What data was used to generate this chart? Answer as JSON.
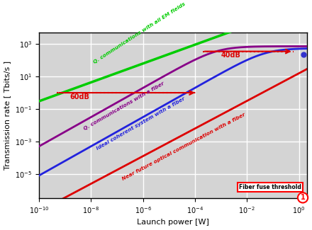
{
  "xlabel": "Launch power [W]",
  "ylabel": "Transmission rate [ Tbits/s ]",
  "bg_color": "#d4d4d4",
  "grid_color": "#ffffff",
  "green_color": "#00cc00",
  "purple_color": "#880088",
  "blue_color": "#2222dd",
  "red_color": "#dd0000",
  "red_annot": "#dd0000",
  "line_green_label": "Q. communications with all EM fields",
  "line_purple_label": "Q. communications with a fiber",
  "line_blue_label": "Ideal coherent system with a fiber",
  "line_red_label": "Near future optical communication with a fiber",
  "annot_60dB": "60dB",
  "annot_40dB": "40dB",
  "fiber_fuse_label": "Fiber fuse threshold",
  "xlim_lo": -10.0,
  "xlim_hi": 0.3,
  "ylim_lo": -6.5,
  "ylim_hi": 3.7
}
